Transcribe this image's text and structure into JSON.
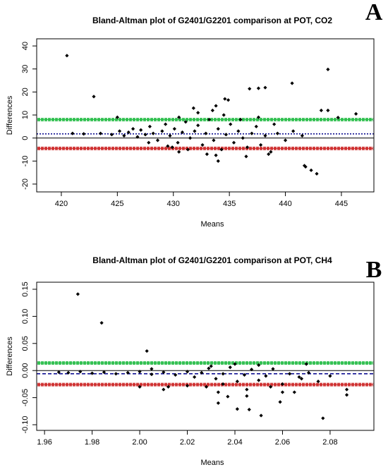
{
  "chart_data": [
    {
      "type": "scatter",
      "panel_label": "A",
      "title": "Bland-Altman plot of G2401/G2201 comparison at POT, CO2",
      "x_label": "Means",
      "y_label": "Differences",
      "xlim": [
        417.8,
        447.9
      ],
      "ylim": [
        -23.4,
        43.1
      ],
      "xticks": [
        420,
        425,
        430,
        435,
        440,
        445
      ],
      "yticks": [
        -20,
        -10,
        0,
        10,
        20,
        30,
        40
      ],
      "color": "#000000",
      "hlines": [
        {
          "value": 0,
          "color": "#000000",
          "style": "solid"
        },
        {
          "value": 1.8,
          "color": "#00008b",
          "style": "dotted"
        },
        {
          "value": 8,
          "color": "#22bb44",
          "style": "band"
        },
        {
          "value": -4.5,
          "color": "#cc2222",
          "style": "band"
        }
      ],
      "x": [
        420.5,
        422.9,
        443.8,
        440.6,
        437.6,
        438.2,
        436.8,
        434.6,
        434.9,
        433.5,
        433.8,
        431.8,
        432.2,
        441.7,
        441.8,
        442.3,
        442.8,
        434.0,
        443.8,
        444.7,
        446.3,
        443.2,
        438.5,
        436.5,
        430.5,
        429.5,
        425.0,
        421.0,
        425.2,
        425.6,
        426.0,
        426.4,
        426.8,
        427.1,
        427.5,
        427.9,
        428.2,
        428.6,
        429.0,
        429.3,
        429.7,
        430.1,
        430.4,
        430.8,
        431.1,
        431.5,
        431.9,
        432.2,
        432.6,
        432.9,
        433.2,
        433.6,
        434.0,
        434.3,
        434.7,
        435.1,
        435.4,
        435.8,
        436.2,
        436.6,
        437.0,
        437.4,
        437.8,
        438.2,
        438.7,
        439.3,
        440.0,
        440.7,
        441.5,
        424.5,
        423.5,
        422.0,
        427.8,
        429.9,
        431.3,
        433.0,
        436.0,
        437.6,
        439.0,
        434.5,
        433.8,
        430.5
      ],
      "y": [
        35.8,
        18,
        29.8,
        23.8,
        21.6,
        21.9,
        21.4,
        17,
        16.5,
        12,
        14,
        13,
        11,
        -12,
        -12.5,
        -14,
        -15.5,
        -10,
        12,
        8.9,
        10.5,
        12,
        -7,
        -8,
        -6,
        -3.5,
        9,
        2,
        3,
        1,
        2.5,
        4,
        0.5,
        3.5,
        1.5,
        5,
        2,
        -1,
        3,
        6,
        1,
        4,
        -2,
        2.5,
        7,
        0,
        3,
        5.5,
        -3,
        2,
        8,
        -1,
        4,
        -5,
        1.5,
        6,
        -2,
        3,
        0,
        -4,
        2,
        5,
        -3,
        1,
        -6,
        2,
        -1,
        3,
        1,
        1.5,
        2,
        1.8,
        -2,
        -4,
        -5,
        -7,
        8,
        9,
        6,
        10,
        -7.5,
        9
      ]
    },
    {
      "type": "scatter",
      "panel_label": "B",
      "title": "Bland-Altman plot of G2401/G2201 comparison at POT, CH4",
      "x_label": "Means",
      "y_label": "Differences",
      "xlim": [
        1.9567,
        2.0984
      ],
      "ylim": [
        -0.1104,
        0.163
      ],
      "xticks": [
        1.96,
        1.98,
        {
          "value": 2,
          "label": "2.00"
        },
        2.02,
        2.04,
        2.06,
        2.08
      ],
      "yticks": [
        {
          "value": -0.1,
          "label": "-0.10"
        },
        -0.05,
        {
          "value": 0,
          "label": "0.00"
        },
        0.05,
        {
          "value": 0.1,
          "label": "0.10"
        },
        0.15
      ],
      "color": "#000000",
      "hlines": [
        {
          "value": 0,
          "color": "#000000",
          "style": "solid"
        },
        {
          "value": -0.006,
          "color": "#00008b",
          "style": "dashed"
        },
        {
          "value": 0.014,
          "color": "#22bb44",
          "style": "band"
        },
        {
          "value": -0.026,
          "color": "#cc2222",
          "style": "band"
        }
      ],
      "x": [
        1.974,
        1.984,
        2.003,
        2.041,
        2.051,
        2.077,
        2.087,
        2.087,
        2.046,
        2.059,
        2.033,
        2.01,
        2.0,
        2.037,
        2.045,
        2.065,
        2.07,
        2.068,
        1.966,
        1.97,
        1.975,
        1.98,
        1.985,
        1.99,
        1.995,
        2.0,
        2.005,
        2.01,
        2.015,
        2.02,
        2.023,
        2.026,
        2.029,
        2.032,
        2.035,
        2.038,
        2.041,
        2.044,
        2.047,
        2.05,
        2.053,
        2.056,
        2.06,
        2.063,
        2.067,
        2.071,
        2.075,
        2.08,
        2.028,
        2.035,
        2.04,
        2.05,
        2.055,
        2.02,
        2.012,
        2.045,
        2.06,
        2.03,
        2.005,
        2.033
      ],
      "y": [
        0.141,
        0.088,
        0.036,
        -0.071,
        -0.083,
        -0.088,
        -0.045,
        -0.035,
        -0.072,
        -0.058,
        -0.06,
        -0.035,
        -0.03,
        -0.048,
        -0.047,
        -0.04,
        0.012,
        -0.015,
        -0.003,
        -0.004,
        -0.002,
        -0.005,
        -0.003,
        -0.006,
        -0.004,
        -0.002,
        -0.007,
        -0.003,
        -0.008,
        -0.002,
        -0.012,
        -0.004,
        0.004,
        -0.015,
        -0.006,
        0.006,
        -0.02,
        -0.008,
        0.002,
        -0.018,
        -0.01,
        0.003,
        -0.025,
        -0.006,
        -0.012,
        -0.004,
        -0.02,
        -0.01,
        -0.03,
        -0.025,
        0.012,
        0.01,
        -0.03,
        -0.028,
        -0.03,
        -0.035,
        -0.04,
        0.008,
        0.003,
        -0.04
      ]
    }
  ]
}
